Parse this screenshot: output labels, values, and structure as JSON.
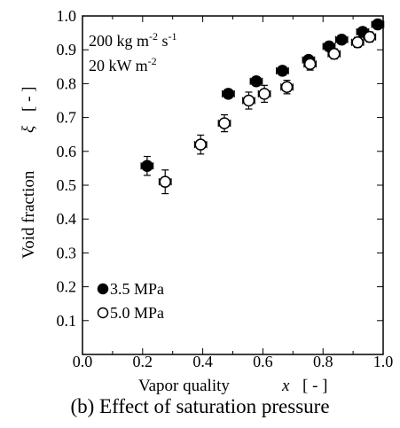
{
  "caption": "(b) Effect of saturation pressure",
  "chart_data": {
    "type": "scatter",
    "xlabel": "Vapor quality",
    "xsymbol": "x",
    "xunit": "[ - ]",
    "ylabel": "Void fraction",
    "ysymbol": "ξ",
    "yunit": "[ - ]",
    "xlim": [
      0.0,
      1.0
    ],
    "ylim": [
      0.0,
      1.0
    ],
    "xticks": [
      "0.0",
      "0.2",
      "0.4",
      "0.6",
      "0.8",
      "1.0"
    ],
    "yticks": [
      "0.1",
      "0.2",
      "0.3",
      "0.4",
      "0.5",
      "0.6",
      "0.7",
      "0.8",
      "0.9",
      "1.0"
    ],
    "conditions": {
      "line1_main": "200 kg m",
      "line1_exp1": "-2",
      "line1_mid": " s",
      "line1_exp2": "-1",
      "line2_main": "20 kW m",
      "line2_exp": "-2"
    },
    "legend_position": "bottom-left",
    "grid": false,
    "series": [
      {
        "name": "3.5 MPa",
        "marker": "filled-circle",
        "color": "#000000",
        "points": [
          {
            "x": 0.215,
            "y": 0.557,
            "err": 0.028
          },
          {
            "x": 0.485,
            "y": 0.77,
            "err": 0.013
          },
          {
            "x": 0.578,
            "y": 0.807,
            "err": 0.013
          },
          {
            "x": 0.665,
            "y": 0.838,
            "err": 0.01
          },
          {
            "x": 0.752,
            "y": 0.87,
            "err": 0.01
          },
          {
            "x": 0.82,
            "y": 0.91,
            "err": 0.01
          },
          {
            "x": 0.862,
            "y": 0.93,
            "err": 0.008
          },
          {
            "x": 0.932,
            "y": 0.953,
            "err": 0.008
          },
          {
            "x": 0.982,
            "y": 0.975,
            "err": 0.008
          }
        ]
      },
      {
        "name": "5.0 MPa",
        "marker": "open-circle",
        "color": "#000000",
        "points": [
          {
            "x": 0.275,
            "y": 0.51,
            "err": 0.035
          },
          {
            "x": 0.393,
            "y": 0.62,
            "err": 0.028
          },
          {
            "x": 0.472,
            "y": 0.683,
            "err": 0.025
          },
          {
            "x": 0.553,
            "y": 0.75,
            "err": 0.025
          },
          {
            "x": 0.605,
            "y": 0.77,
            "err": 0.025
          },
          {
            "x": 0.68,
            "y": 0.79,
            "err": 0.02
          },
          {
            "x": 0.757,
            "y": 0.858,
            "err": 0.018
          },
          {
            "x": 0.837,
            "y": 0.888,
            "err": 0.015
          },
          {
            "x": 0.915,
            "y": 0.922,
            "err": 0.015
          },
          {
            "x": 0.955,
            "y": 0.938,
            "err": 0.015
          }
        ]
      }
    ]
  }
}
